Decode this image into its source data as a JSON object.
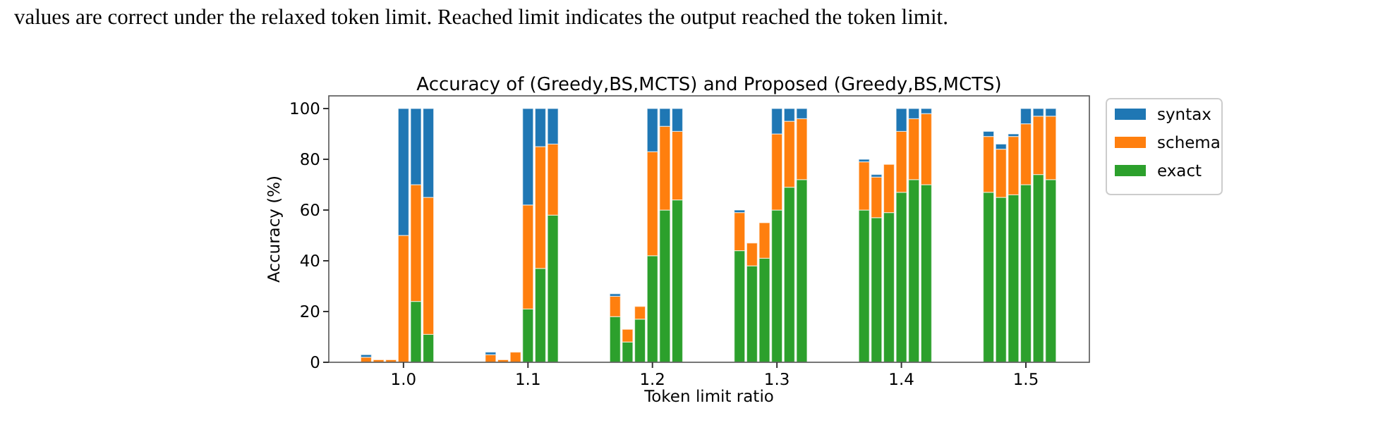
{
  "chart_data": {
    "type": "bar",
    "title": "Accuracy of (Greedy,BS,MCTS) and Proposed (Greedy,BS,MCTS)",
    "xlabel": "Token limit ratio",
    "ylabel": "Accuracy (%)",
    "annotations": [
      "values are correct under the relaxed token limit. Reached limit indicates the output reached the token limit."
    ],
    "stacked": true,
    "legend": "right",
    "grid": false,
    "x": [
      0.97,
      0.98,
      0.99,
      1.0,
      1.01,
      1.02,
      1.07,
      1.08,
      1.09,
      1.1,
      1.11,
      1.12,
      1.17,
      1.18,
      1.19,
      1.2,
      1.21,
      1.22,
      1.27,
      1.28,
      1.29,
      1.3,
      1.31,
      1.32,
      1.37,
      1.38,
      1.39,
      1.4,
      1.41,
      1.42,
      1.47,
      1.48,
      1.49,
      1.5,
      1.51,
      1.52
    ],
    "xlim": [
      0.94,
      1.551
    ],
    "xticks": [
      {
        "value": 1.0,
        "label": "1.0"
      },
      {
        "value": 1.1,
        "label": "1.1"
      },
      {
        "value": 1.2,
        "label": "1.2"
      },
      {
        "value": 1.3,
        "label": "1.3"
      },
      {
        "value": 1.4,
        "label": "1.4"
      },
      {
        "value": 1.5,
        "label": "1.5"
      }
    ],
    "ylim": [
      0,
      105
    ],
    "yticks": [
      0,
      20,
      40,
      60,
      80,
      100
    ],
    "series": [
      {
        "name": "exact",
        "color": "#2ca02c",
        "values": [
          0,
          0,
          0,
          0,
          24,
          11,
          0,
          0,
          0,
          21,
          37,
          58,
          18,
          8,
          17,
          42,
          60,
          64,
          44,
          38,
          41,
          60,
          69,
          72,
          60,
          57,
          59,
          67,
          72,
          70,
          67,
          65,
          66,
          70,
          74,
          72
        ]
      },
      {
        "name": "schema",
        "color": "#ff7f0e",
        "values": [
          2,
          1,
          1,
          50,
          46,
          54,
          3,
          1,
          4,
          41,
          48,
          28,
          8,
          5,
          5,
          41,
          33,
          27,
          15,
          9,
          14,
          30,
          26,
          24,
          19,
          16,
          19,
          24,
          24,
          28,
          22,
          19,
          23,
          24,
          23,
          25
        ]
      },
      {
        "name": "syntax",
        "color": "#1f77b4",
        "values": [
          1,
          0,
          0,
          50,
          30,
          35,
          1,
          0,
          0,
          38,
          15,
          14,
          1,
          0,
          0,
          17,
          7,
          9,
          1,
          0,
          0,
          10,
          5,
          4,
          1,
          1,
          0,
          9,
          4,
          2,
          2,
          2,
          1,
          6,
          3,
          3
        ]
      }
    ]
  }
}
